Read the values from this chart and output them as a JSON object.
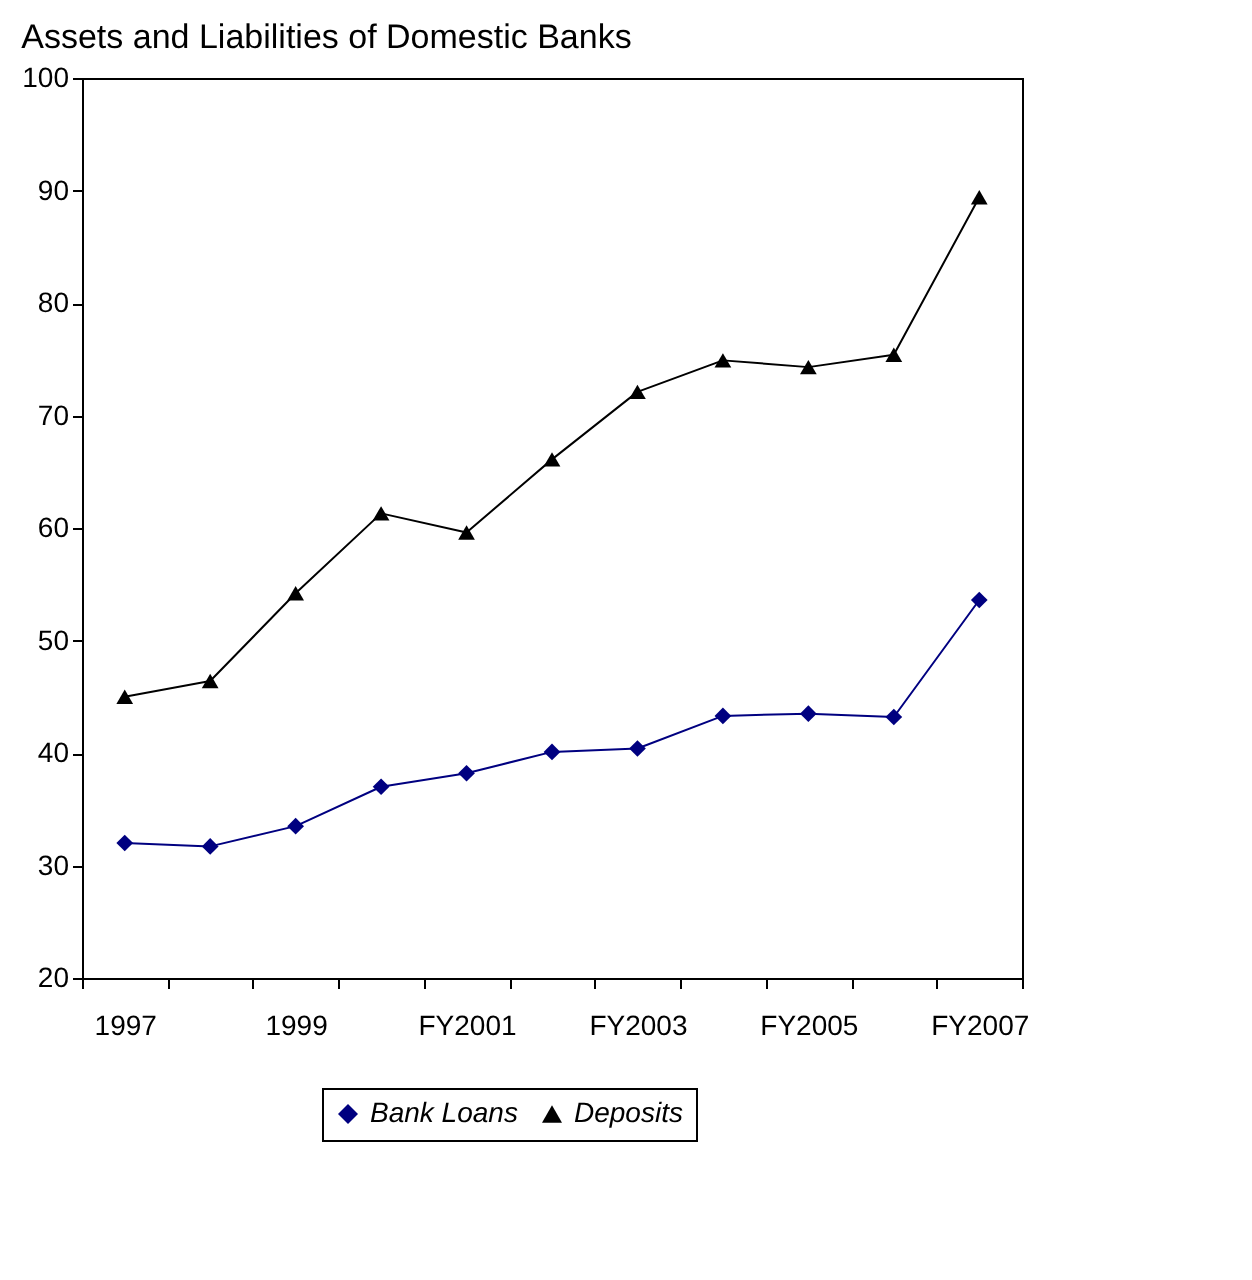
{
  "chart_data": {
    "type": "line",
    "title": "Assets and Liabilities of  Domestic Banks",
    "categories": [
      "1997",
      null,
      "1999",
      null,
      "FY2001",
      null,
      "FY2003",
      null,
      "FY2005",
      null,
      "FY2007"
    ],
    "series": [
      {
        "name": "Bank Loans",
        "color": "#000080",
        "marker": "diamond",
        "values": [
          32.0,
          31.7,
          33.5,
          37.0,
          38.2,
          40.1,
          40.4,
          43.3,
          43.5,
          43.2,
          53.6
        ]
      },
      {
        "name": "Deposits",
        "color": "#000000",
        "marker": "triangle",
        "values": [
          45.0,
          46.4,
          54.2,
          61.3,
          59.6,
          66.1,
          72.1,
          74.9,
          74.3,
          75.4,
          89.4
        ]
      }
    ],
    "ylim": [
      20,
      100
    ],
    "yticks": [
      20,
      30,
      40,
      50,
      60,
      70,
      80,
      90,
      100
    ],
    "grid": false,
    "legend": "bottom",
    "line_style": "solid"
  }
}
